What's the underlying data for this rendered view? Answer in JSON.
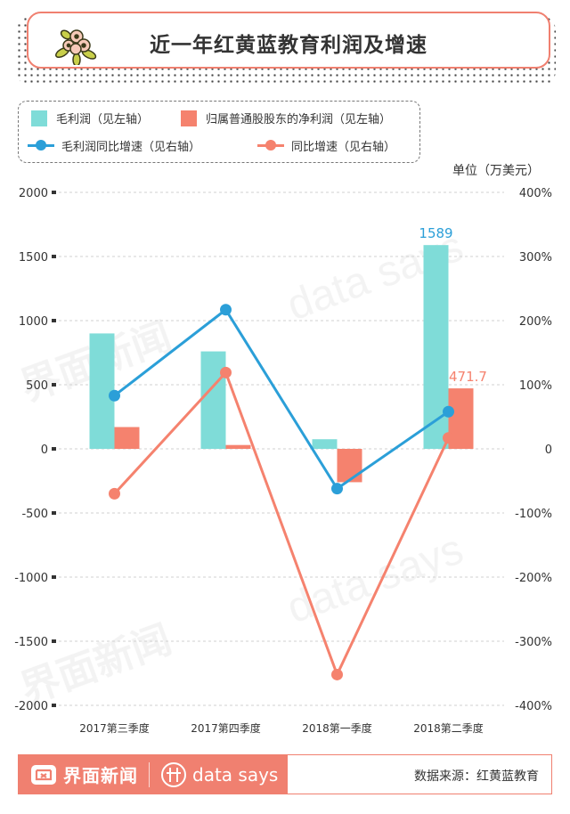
{
  "title": "近一年红黄蓝教育利润及增速",
  "legend": {
    "gross_profit": "毛利润（见左轴）",
    "net_profit": "归属普通股股东的净利润（见左轴）",
    "gross_growth": "毛利润同比增速（见右轴）",
    "net_growth": "同比增速（见右轴）"
  },
  "unit": "单位（万美元）",
  "footer": {
    "brand": "界面新闻",
    "datasays": "data says",
    "source": "数据来源：红黄蓝教育"
  },
  "colors": {
    "teal": "#7fdcd8",
    "salmon": "#f5826e",
    "blue": "#2b9fd8",
    "accent": "#f08070"
  },
  "chart_data": {
    "type": "bar",
    "categories": [
      "2017第三季度",
      "2017第四季度",
      "2018第一季度",
      "2018第二季度"
    ],
    "series": [
      {
        "name": "毛利润（见左轴）",
        "type": "bar",
        "axis": "left",
        "values": [
          900,
          760,
          75,
          1589
        ]
      },
      {
        "name": "归属普通股股东的净利润（见左轴）",
        "type": "bar",
        "axis": "left",
        "values": [
          170,
          30,
          -260,
          471.7
        ]
      },
      {
        "name": "毛利润同比增速（见右轴）",
        "type": "line",
        "axis": "right",
        "values": [
          83,
          217,
          -62,
          58
        ]
      },
      {
        "name": "同比增速（见右轴）",
        "type": "line",
        "axis": "right",
        "values": [
          -70,
          119,
          -352,
          17
        ]
      }
    ],
    "data_labels": [
      {
        "series": 0,
        "index": 3,
        "text": "1589"
      },
      {
        "series": 1,
        "index": 3,
        "text": "471.7"
      }
    ],
    "left_axis": {
      "ylim": [
        -2000,
        2000
      ],
      "ticks": [
        "2000",
        "1500",
        "1000",
        "500",
        "0",
        "-500",
        "-1000",
        "-1500",
        "-2000"
      ]
    },
    "right_axis": {
      "ylim": [
        -400,
        400
      ],
      "ticks": [
        "400%",
        "300%",
        "200%",
        "100%",
        "0",
        "-100%",
        "-200%",
        "-300%",
        "-400%"
      ]
    },
    "grid": true
  }
}
